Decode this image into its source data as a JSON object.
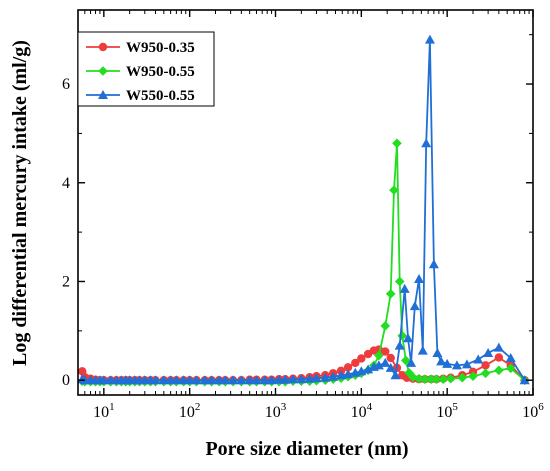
{
  "chart_data": {
    "type": "line",
    "title": "",
    "xlabel": "Pore size diameter (nm)",
    "ylabel": "Log differential mercury intake (ml/g)",
    "xscale": "log",
    "xlim": [
      5,
      1000000
    ],
    "ylim": [
      -0.3,
      7.5
    ],
    "x_ticks": [
      {
        "value": 10,
        "base": "10",
        "exp": "1"
      },
      {
        "value": 100,
        "base": "10",
        "exp": "2"
      },
      {
        "value": 1000,
        "base": "10",
        "exp": "3"
      },
      {
        "value": 10000,
        "base": "10",
        "exp": "4"
      },
      {
        "value": 100000,
        "base": "10",
        "exp": "5"
      },
      {
        "value": 1000000,
        "base": "10",
        "exp": "6"
      }
    ],
    "y_ticks": [
      0,
      2,
      4,
      6
    ],
    "grid": false,
    "legend_position": "top-left",
    "series": [
      {
        "name": "W950-0.35",
        "color": "#ee3b3b",
        "marker": "circle",
        "x": [
          5.6,
          6,
          7,
          8,
          9,
          10,
          12,
          14,
          16,
          18,
          20,
          23,
          26,
          30,
          35,
          40,
          50,
          60,
          70,
          85,
          100,
          120,
          150,
          180,
          220,
          260,
          320,
          400,
          500,
          600,
          750,
          900,
          1100,
          1300,
          1600,
          2000,
          2500,
          3000,
          3800,
          4700,
          5800,
          7000,
          8500,
          10000,
          12000,
          14000,
          16000,
          19000,
          22000,
          26000,
          30000,
          34000,
          40000,
          47000,
          55000,
          65000,
          75000,
          90000,
          110000,
          150000,
          200000,
          280000,
          400000,
          550000,
          800000
        ],
        "y": [
          0.18,
          0.06,
          0.03,
          0.01,
          0.0,
          0.0,
          0.0,
          0.0,
          0.0,
          0.0,
          0.0,
          0.0,
          0.0,
          0.0,
          0.0,
          0.0,
          0.0,
          0.0,
          0.0,
          0.0,
          0.0,
          0.0,
          0.0,
          0.0,
          0.0,
          0.0,
          0.0,
          0.0,
          0.01,
          0.01,
          0.01,
          0.01,
          0.02,
          0.02,
          0.03,
          0.04,
          0.06,
          0.08,
          0.1,
          0.14,
          0.19,
          0.26,
          0.35,
          0.44,
          0.53,
          0.6,
          0.62,
          0.58,
          0.45,
          0.25,
          0.1,
          0.05,
          0.03,
          0.02,
          0.02,
          0.02,
          0.02,
          0.03,
          0.05,
          0.1,
          0.17,
          0.3,
          0.46,
          0.3,
          0.0
        ]
      },
      {
        "name": "W950-0.55",
        "color": "#22dd22",
        "marker": "diamond",
        "x": [
          5.6,
          6,
          7,
          8,
          9,
          10,
          12,
          14,
          16,
          18,
          20,
          23,
          26,
          30,
          35,
          40,
          50,
          60,
          70,
          85,
          100,
          120,
          150,
          180,
          220,
          260,
          320,
          400,
          500,
          600,
          750,
          900,
          1100,
          1300,
          1600,
          2000,
          2500,
          3000,
          3800,
          4700,
          5800,
          7000,
          8500,
          10000,
          12000,
          14000,
          16000,
          19000,
          22000,
          24000,
          26000,
          28000,
          30000,
          33000,
          36000,
          40000,
          47000,
          55000,
          65000,
          75000,
          90000,
          110000,
          150000,
          200000,
          280000,
          400000,
          550000,
          800000
        ],
        "y": [
          -0.02,
          -0.03,
          -0.03,
          -0.03,
          -0.03,
          -0.03,
          -0.03,
          -0.03,
          -0.03,
          -0.03,
          -0.03,
          -0.03,
          -0.03,
          -0.03,
          -0.03,
          -0.03,
          -0.03,
          -0.03,
          -0.03,
          -0.03,
          -0.03,
          -0.03,
          -0.03,
          -0.03,
          -0.03,
          -0.03,
          -0.03,
          -0.03,
          -0.03,
          -0.03,
          -0.03,
          -0.03,
          -0.03,
          -0.03,
          -0.02,
          -0.02,
          -0.02,
          -0.01,
          0.0,
          0.02,
          0.04,
          0.07,
          0.1,
          0.14,
          0.2,
          0.3,
          0.5,
          1.1,
          1.75,
          3.85,
          4.8,
          2.0,
          0.9,
          0.4,
          0.15,
          0.06,
          0.03,
          0.02,
          0.02,
          0.02,
          0.02,
          0.03,
          0.05,
          0.08,
          0.14,
          0.2,
          0.24,
          0.0
        ]
      },
      {
        "name": "W550-0.55",
        "color": "#1f6fd6",
        "marker": "triangle",
        "x": [
          5.6,
          6,
          7,
          8,
          9,
          10,
          12,
          14,
          16,
          18,
          20,
          23,
          26,
          30,
          35,
          40,
          50,
          60,
          70,
          85,
          100,
          120,
          150,
          180,
          220,
          260,
          320,
          400,
          500,
          600,
          750,
          900,
          1100,
          1300,
          1600,
          2000,
          2500,
          3000,
          3800,
          4700,
          5800,
          7000,
          8500,
          10000,
          12000,
          14000,
          16000,
          19000,
          22000,
          25000,
          28000,
          32000,
          35000,
          38000,
          42000,
          47000,
          52000,
          57000,
          63000,
          70000,
          77000,
          85000,
          100000,
          130000,
          170000,
          230000,
          300000,
          400000,
          550000,
          800000
        ],
        "y": [
          0.02,
          0.0,
          0.0,
          0.0,
          0.0,
          0.0,
          0.0,
          0.0,
          0.0,
          0.0,
          0.0,
          0.0,
          0.0,
          0.0,
          0.0,
          0.0,
          0.0,
          0.0,
          0.0,
          0.0,
          0.0,
          0.0,
          0.0,
          0.0,
          0.0,
          0.0,
          0.0,
          0.0,
          0.0,
          0.0,
          0.0,
          0.0,
          0.01,
          0.01,
          0.02,
          0.02,
          0.03,
          0.04,
          0.05,
          0.07,
          0.1,
          0.12,
          0.15,
          0.18,
          0.22,
          0.27,
          0.3,
          0.35,
          0.25,
          0.1,
          0.7,
          1.85,
          0.85,
          0.35,
          1.5,
          2.05,
          0.6,
          4.8,
          6.9,
          2.35,
          0.55,
          0.38,
          0.33,
          0.3,
          0.32,
          0.42,
          0.55,
          0.66,
          0.45,
          0.0
        ]
      }
    ]
  }
}
